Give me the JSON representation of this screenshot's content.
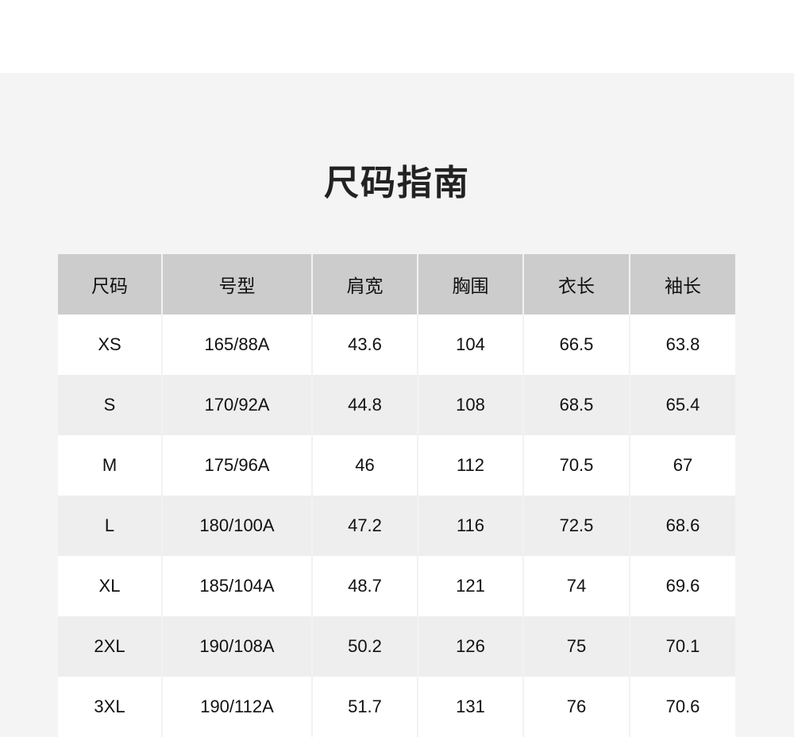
{
  "title": "尺码指南",
  "colors": {
    "header_bg": "#cccccc",
    "row_alt_bg": "#eeeeee",
    "page_bg": "#f4f4f4"
  },
  "table": {
    "headers": [
      "尺码",
      "号型",
      "肩宽",
      "胸围",
      "衣长",
      "袖长"
    ],
    "rows": [
      [
        "XS",
        "165/88A",
        "43.6",
        "104",
        "66.5",
        "63.8"
      ],
      [
        "S",
        "170/92A",
        "44.8",
        "108",
        "68.5",
        "65.4"
      ],
      [
        "M",
        "175/96A",
        "46",
        "112",
        "70.5",
        "67"
      ],
      [
        "L",
        "180/100A",
        "47.2",
        "116",
        "72.5",
        "68.6"
      ],
      [
        "XL",
        "185/104A",
        "48.7",
        "121",
        "74",
        "69.6"
      ],
      [
        "2XL",
        "190/108A",
        "50.2",
        "126",
        "75",
        "70.1"
      ],
      [
        "3XL",
        "190/112A",
        "51.7",
        "131",
        "76",
        "70.6"
      ]
    ]
  }
}
